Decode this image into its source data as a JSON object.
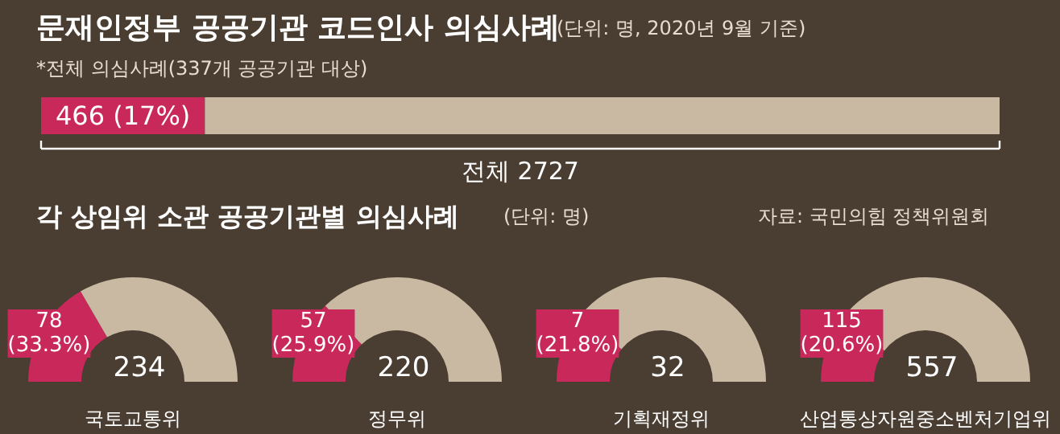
{
  "chart_data": [
    {
      "type": "bar",
      "orientation": "horizontal",
      "stacked": true,
      "title": "문재인정부 공공기관 코드인사 의심사례",
      "subtitle": "(단위: 명, 2020년 9월 기준)",
      "categories": [
        null
      ],
      "series": [
        {
          "color": "#c8285a",
          "values": [
            466
          ],
          "value_labels": [
            "466 (17%)"
          ]
        },
        {
          "color": "#c9b9a3",
          "values": [
            2261
          ]
        }
      ],
      "annotations": [
        "*전체 의심사례(337개 공공기관 대상)",
        "전체 2727"
      ]
    },
    {
      "type": "other",
      "title": "각 상임위 소관 공공기관별 의심사례",
      "subtitle": "(단위: 명)",
      "annotations": [
        "자료: 국민의힘 정책위원회"
      ]
    },
    {
      "type": "donut",
      "xlabel": "국토교통위",
      "categories": [
        null,
        null
      ],
      "values": [
        78,
        156
      ],
      "colors": [
        "#c8285a",
        "#c9b9a3"
      ],
      "value_labels": [
        "78\n(33.3%)",
        null
      ],
      "annotations": [
        "234"
      ]
    },
    {
      "type": "donut",
      "xlabel": "정무위",
      "categories": [
        null,
        null
      ],
      "values": [
        57,
        163
      ],
      "colors": [
        "#c8285a",
        "#c9b9a3"
      ],
      "value_labels": [
        "57\n(25.9%)",
        null
      ],
      "annotations": [
        "220"
      ]
    },
    {
      "type": "donut",
      "xlabel": "기획재정위",
      "categories": [
        null,
        null
      ],
      "values": [
        7,
        25
      ],
      "colors": [
        "#c8285a",
        "#c9b9a3"
      ],
      "value_labels": [
        "7\n(21.8%)",
        null
      ],
      "annotations": [
        "32"
      ]
    },
    {
      "type": "donut",
      "xlabel": "산업통상자원중소벤처기업위",
      "categories": [
        null,
        null
      ],
      "values": [
        115,
        442
      ],
      "colors": [
        "#c8285a",
        "#c9b9a3"
      ],
      "value_labels": [
        "115\n(20.6%)",
        null
      ],
      "annotations": [
        "557"
      ]
    }
  ]
}
